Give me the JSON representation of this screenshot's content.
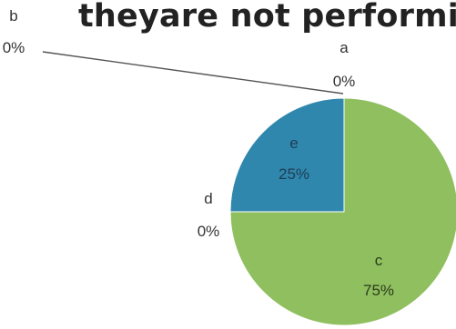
{
  "chart_data": {
    "type": "pie",
    "title": "theyare not performi",
    "slices": [
      {
        "name": "a",
        "value": 0,
        "pct_label": "0%"
      },
      {
        "name": "b",
        "value": 0,
        "pct_label": "0%"
      },
      {
        "name": "c",
        "value": 75,
        "pct_label": "75%",
        "color": "#8fbf5f"
      },
      {
        "name": "d",
        "value": 0,
        "pct_label": "0%"
      },
      {
        "name": "e",
        "value": 25,
        "pct_label": "25%",
        "color": "#2f87ad"
      }
    ],
    "legend": "none",
    "data_labels": "category name and percentage"
  }
}
